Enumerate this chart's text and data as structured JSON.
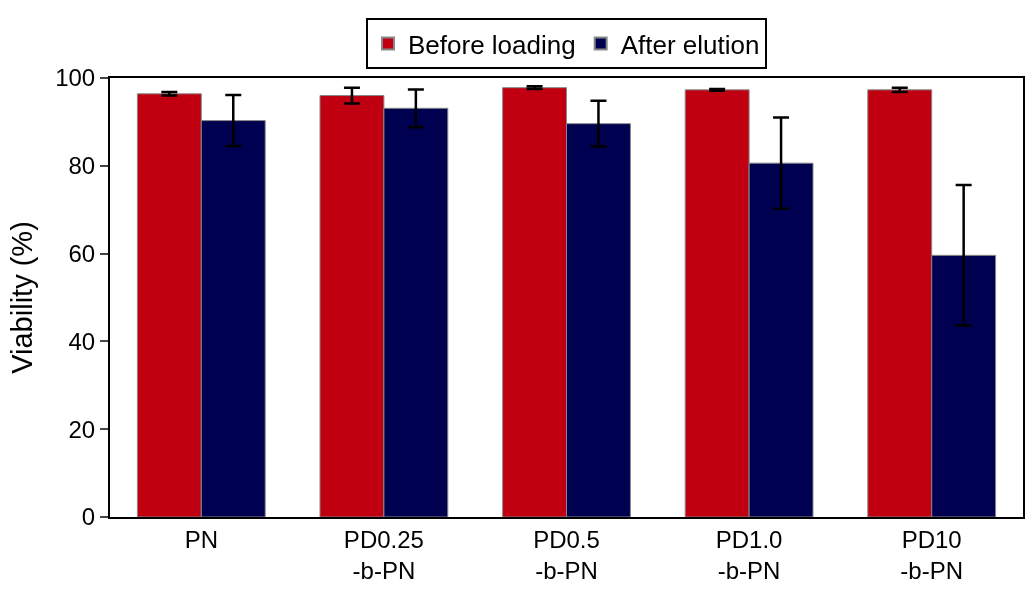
{
  "chart_data": {
    "type": "bar",
    "ylabel": "Viability (%)",
    "categories": [
      "PN",
      "PD0.25\n-b-PN",
      "PD0.5\n-b-PN",
      "PD1.0\n-b-PN",
      "PD10\n-b-PN"
    ],
    "series": [
      {
        "name": "Before loading",
        "color": "#c00010",
        "values": [
          96.4,
          96.0,
          97.8,
          97.3,
          97.3
        ],
        "errors": [
          0.4,
          1.8,
          0.3,
          0.2,
          0.5
        ]
      },
      {
        "name": "After elution",
        "color": "#000050",
        "values": [
          90.3,
          93.1,
          89.6,
          80.6,
          59.6
        ],
        "errors": [
          5.8,
          4.3,
          5.2,
          10.4,
          16
        ]
      }
    ],
    "ylim": [
      0,
      100
    ],
    "yticks": [
      0,
      20,
      40,
      60,
      80,
      100
    ],
    "grid": false,
    "legend": "top"
  }
}
